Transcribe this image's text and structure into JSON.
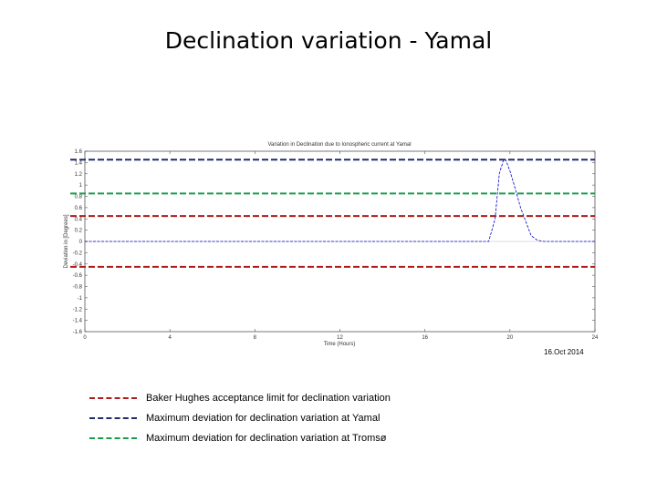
{
  "slide": {
    "title": "Declination variation - Yamal",
    "date": "16.Oct 2014"
  },
  "chart_data": {
    "type": "line",
    "title": "Variation in Declination due to Ionospheric current at Yamal",
    "xlabel": "Time (Hours)",
    "ylabel": "Deviation in [Degrees]",
    "xlim": [
      0,
      24
    ],
    "ylim": [
      -1.6,
      1.6
    ],
    "xticks": [
      0,
      4,
      8,
      12,
      16,
      20,
      24
    ],
    "yticks": [
      1.6,
      1.4,
      1.2,
      1,
      0.8,
      0.6,
      0.4,
      0.2,
      0,
      -0.2,
      -0.4,
      -0.6,
      -0.8,
      -1,
      -1.2,
      -1.4,
      -1.6
    ],
    "grid": false,
    "series": [
      {
        "color": "#0000cc",
        "x": [
          0,
          19.0,
          19.3,
          19.5,
          19.7,
          19.8,
          20.0,
          20.2,
          20.5,
          20.8,
          21.0,
          21.3,
          21.6,
          24
        ],
        "y": [
          0,
          0,
          0.4,
          1.2,
          1.45,
          1.45,
          1.25,
          1.0,
          0.6,
          0.3,
          0.1,
          0.02,
          0,
          0
        ]
      }
    ],
    "reference_lines": [
      {
        "name": "Maximum deviation for declination variation at Yamal",
        "y": 1.45,
        "color": "#1f2d6b"
      },
      {
        "name": "Maximum deviation for declination variation at Tromsø",
        "y": 0.85,
        "color": "#1a9c4a"
      },
      {
        "name": "Baker Hughes acceptance limit for declination variation",
        "y": 0.45,
        "color": "#b01c1c"
      },
      {
        "name": "Baker Hughes acceptance limit for declination variation",
        "y": -0.45,
        "color": "#b01c1c"
      }
    ]
  },
  "legend": {
    "items": [
      {
        "label": "Baker Hughes acceptance limit for declination variation",
        "color": "#b01c1c"
      },
      {
        "label": "Maximum deviation for declination variation at Yamal",
        "color": "#1f2d6b"
      },
      {
        "label": "Maximum deviation for declination variation at Tromsø",
        "color": "#1a9c4a"
      }
    ]
  }
}
